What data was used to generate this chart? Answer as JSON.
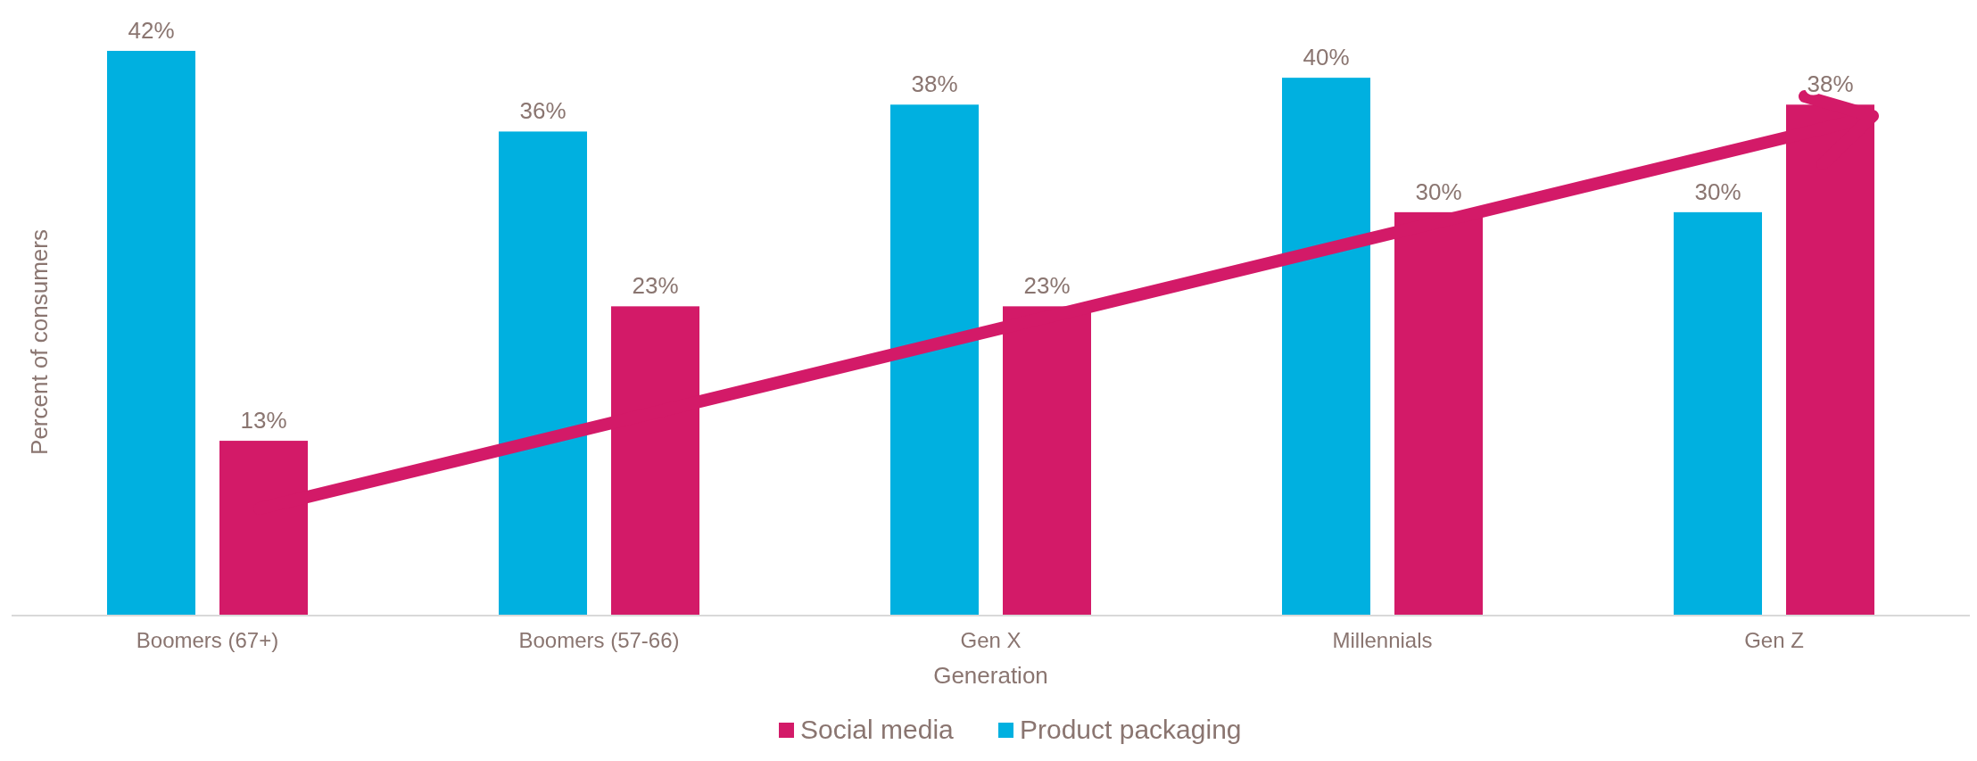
{
  "chart_data": {
    "type": "bar",
    "xlabel": "Generation",
    "ylabel": "Percent of consumers",
    "categories": [
      "Boomers (67+)",
      "Boomers (57-66)",
      "Gen X",
      "Millennials",
      "Gen Z"
    ],
    "series": [
      {
        "name": "Product packaging",
        "color": "#00b0e0",
        "values": [
          42,
          36,
          38,
          40,
          30
        ],
        "value_labels": [
          "42%",
          "36%",
          "38%",
          "40%",
          "30%"
        ]
      },
      {
        "name": "Social media",
        "color": "#d31a68",
        "values": [
          13,
          23,
          23,
          30,
          38
        ],
        "value_labels": [
          "13%",
          "23%",
          "23%",
          "30%",
          "38%"
        ]
      }
    ],
    "relative": false,
    "legend": "bottom"
  }
}
